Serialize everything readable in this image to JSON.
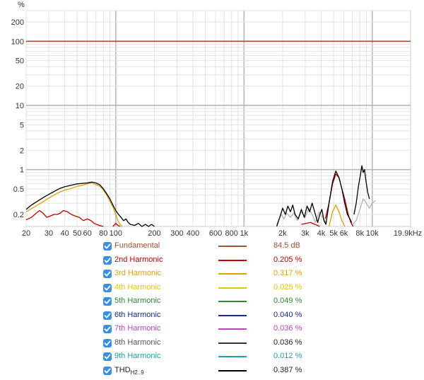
{
  "chart_data": {
    "type": "line",
    "unit_label": "%",
    "xscale": "log",
    "yscale": "log",
    "xlim": [
      20,
      19900
    ],
    "ylim": [
      0.13,
      300
    ],
    "grid": true,
    "legend_position": "bottom",
    "x_tick_labels": [
      {
        "value": 20,
        "label": "20"
      },
      {
        "value": 30,
        "label": "30"
      },
      {
        "value": 40,
        "label": "40"
      },
      {
        "value": 50,
        "label": "50"
      },
      {
        "value": 60,
        "label": "60"
      },
      {
        "value": 80,
        "label": "80"
      },
      {
        "value": 100,
        "label": "100"
      },
      {
        "value": 200,
        "label": "200"
      },
      {
        "value": 300,
        "label": "300"
      },
      {
        "value": 400,
        "label": "400"
      },
      {
        "value": 600,
        "label": "600"
      },
      {
        "value": 800,
        "label": "800"
      },
      {
        "value": 1000,
        "label": "1k"
      },
      {
        "value": 2000,
        "label": "2k"
      },
      {
        "value": 3000,
        "label": "3k"
      },
      {
        "value": 4000,
        "label": "4k"
      },
      {
        "value": 5000,
        "label": "5k"
      },
      {
        "value": 6000,
        "label": "6k"
      },
      {
        "value": 8000,
        "label": "8k"
      },
      {
        "value": 10000,
        "label": "10k"
      },
      {
        "value": 19900,
        "label": "19.9kHz"
      }
    ],
    "y_tick_labels": [
      {
        "value": 200,
        "label": "200"
      },
      {
        "value": 100,
        "label": "100"
      },
      {
        "value": 50,
        "label": "50"
      },
      {
        "value": 20,
        "label": "20"
      },
      {
        "value": 10,
        "label": "10"
      },
      {
        "value": 5,
        "label": "5"
      },
      {
        "value": 2,
        "label": "2"
      },
      {
        "value": 1,
        "label": "1"
      },
      {
        "value": 0.5,
        "label": "0.5"
      },
      {
        "value": 0.2,
        "label": "0.2"
      }
    ],
    "series": [
      {
        "name": "Fundamental",
        "color": "#a0522d",
        "value": "84.5 dB",
        "segments": [
          [
            [
              20,
              100
            ],
            [
              19900,
              100
            ]
          ]
        ]
      },
      {
        "name": "2nd Harmonic",
        "color": "#c00000",
        "value": "0.205 %",
        "segments": [
          [
            [
              20,
              0.165
            ],
            [
              22,
              0.18
            ],
            [
              24,
              0.21
            ],
            [
              25.5,
              0.23
            ],
            [
              27,
              0.21
            ],
            [
              29,
              0.18
            ],
            [
              31,
              0.19
            ],
            [
              33,
              0.2
            ],
            [
              35,
              0.2
            ],
            [
              37,
              0.21
            ],
            [
              39,
              0.23
            ],
            [
              42,
              0.22
            ],
            [
              45,
              0.2
            ],
            [
              48,
              0.19
            ],
            [
              52,
              0.18
            ],
            [
              56,
              0.16
            ],
            [
              60,
              0.17
            ],
            [
              64,
              0.16
            ],
            [
              68,
              0.145
            ],
            [
              74,
              0.135
            ],
            [
              80,
              0.13
            ]
          ],
          [
            [
              95,
              0.13
            ],
            [
              100,
              0.145
            ],
            [
              104,
              0.135
            ],
            [
              108,
              0.13
            ]
          ],
          [
            [
              2800,
              0.14
            ],
            [
              3300,
              0.15
            ],
            [
              3900,
              0.13
            ]
          ],
          [
            [
              4300,
              0.17
            ],
            [
              4600,
              0.3
            ],
            [
              4900,
              0.6
            ],
            [
              5200,
              0.85
            ],
            [
              5500,
              0.75
            ],
            [
              5800,
              0.5
            ],
            [
              6100,
              0.35
            ],
            [
              6500,
              0.2
            ],
            [
              6800,
              0.15
            ],
            [
              7100,
              0.13
            ]
          ]
        ]
      },
      {
        "name": "3rd Harmonic",
        "color": "#e0a000",
        "value": "0.317 %",
        "segments": [
          [
            [
              20,
              0.22
            ],
            [
              23,
              0.26
            ],
            [
              26,
              0.3
            ],
            [
              30,
              0.36
            ],
            [
              35,
              0.43
            ],
            [
              40,
              0.48
            ],
            [
              45,
              0.51
            ],
            [
              50,
              0.55
            ],
            [
              55,
              0.57
            ],
            [
              60,
              0.6
            ],
            [
              65,
              0.62
            ],
            [
              70,
              0.58
            ],
            [
              75,
              0.55
            ],
            [
              80,
              0.48
            ],
            [
              85,
              0.4
            ],
            [
              90,
              0.32
            ],
            [
              95,
              0.26
            ],
            [
              100,
              0.2
            ],
            [
              104,
              0.16
            ],
            [
              108,
              0.14
            ],
            [
              112,
              0.13
            ]
          ],
          [
            [
              4600,
              0.13
            ],
            [
              4900,
              0.22
            ],
            [
              5200,
              0.28
            ],
            [
              5500,
              0.22
            ],
            [
              5800,
              0.16
            ],
            [
              6100,
              0.13
            ]
          ]
        ]
      },
      {
        "name": "4th Harmonic",
        "color": "#e8c000",
        "value": "0.025 %",
        "segments": []
      },
      {
        "name": "5th Harmonic",
        "color": "#2e8b2e",
        "value": "0.049 %",
        "segments": []
      },
      {
        "name": "6th Harmonic",
        "color": "#1a2a8a",
        "value": "0.040 %",
        "segments": []
      },
      {
        "name": "7th Harmonic",
        "color": "#c040c0",
        "value": "0.036 %",
        "segments": []
      },
      {
        "name": "8th Harmonic",
        "color": "#b3b3b3",
        "value": "0.036 %",
        "segments": [
          [
            [
              1800,
              0.14
            ],
            [
              1950,
              0.2
            ],
            [
              2050,
              0.17
            ],
            [
              2150,
              0.21
            ],
            [
              2300,
              0.18
            ],
            [
              2450,
              0.21
            ],
            [
              2600,
              0.16
            ],
            [
              2800,
              0.22
            ],
            [
              3000,
              0.18
            ],
            [
              3200,
              0.25
            ],
            [
              3400,
              0.2
            ],
            [
              3600,
              0.15
            ],
            [
              3850,
              0.22
            ],
            [
              4100,
              0.18
            ],
            [
              4350,
              0.15
            ]
          ],
          [
            [
              7000,
              0.14
            ],
            [
              7500,
              0.16
            ],
            [
              8000,
              0.24
            ],
            [
              8500,
              0.35
            ],
            [
              9000,
              0.3
            ],
            [
              9500,
              0.25
            ],
            [
              10000,
              0.3
            ],
            [
              10600,
              0.33
            ]
          ]
        ]
      },
      {
        "name": "9th Harmonic",
        "color": "#20a0a0",
        "value": "0.012 %",
        "segments": []
      },
      {
        "name": "THD",
        "name_sub": "H2..9",
        "color": "#000000",
        "value": "0.387 %",
        "segments": [
          [
            [
              20,
              0.24
            ],
            [
              22,
              0.28
            ],
            [
              25,
              0.33
            ],
            [
              28,
              0.38
            ],
            [
              32,
              0.44
            ],
            [
              36,
              0.5
            ],
            [
              40,
              0.54
            ],
            [
              45,
              0.57
            ],
            [
              50,
              0.6
            ],
            [
              55,
              0.61
            ],
            [
              60,
              0.62
            ],
            [
              65,
              0.64
            ],
            [
              70,
              0.62
            ],
            [
              75,
              0.58
            ],
            [
              80,
              0.5
            ],
            [
              85,
              0.42
            ],
            [
              90,
              0.35
            ],
            [
              95,
              0.28
            ],
            [
              100,
              0.23
            ],
            [
              105,
              0.2
            ],
            [
              110,
              0.18
            ],
            [
              115,
              0.16
            ],
            [
              120,
              0.17
            ],
            [
              125,
              0.15
            ],
            [
              130,
              0.14
            ],
            [
              140,
              0.135
            ],
            [
              150,
              0.145
            ],
            [
              160,
              0.13
            ],
            [
              170,
              0.14
            ],
            [
              180,
              0.13
            ],
            [
              190,
              0.14
            ],
            [
              200,
              0.13
            ]
          ],
          [
            [
              1800,
              0.13
            ],
            [
              1900,
              0.18
            ],
            [
              2000,
              0.25
            ],
            [
              2100,
              0.2
            ],
            [
              2200,
              0.27
            ],
            [
              2300,
              0.22
            ],
            [
              2400,
              0.28
            ],
            [
              2500,
              0.2
            ],
            [
              2650,
              0.17
            ],
            [
              2800,
              0.24
            ],
            [
              2950,
              0.18
            ],
            [
              3100,
              0.27
            ],
            [
              3250,
              0.22
            ],
            [
              3400,
              0.3
            ],
            [
              3600,
              0.2
            ],
            [
              3750,
              0.15
            ],
            [
              3900,
              0.2
            ],
            [
              4050,
              0.24
            ],
            [
              4200,
              0.16
            ],
            [
              4350,
              0.14
            ],
            [
              4600,
              0.3
            ],
            [
              4900,
              0.65
            ],
            [
              5200,
              0.95
            ],
            [
              5500,
              0.75
            ],
            [
              5800,
              0.5
            ],
            [
              6100,
              0.3
            ],
            [
              6400,
              0.2
            ],
            [
              6700,
              0.17
            ],
            [
              6900,
              0.15
            ]
          ],
          [
            [
              7200,
              0.2
            ],
            [
              7500,
              0.3
            ],
            [
              7800,
              0.55
            ],
            [
              8100,
              0.85
            ],
            [
              8300,
              1.15
            ],
            [
              8500,
              0.9
            ],
            [
              8700,
              1.0
            ],
            [
              8900,
              0.7
            ],
            [
              9200,
              0.45
            ],
            [
              9500,
              0.35
            ]
          ]
        ]
      }
    ]
  }
}
